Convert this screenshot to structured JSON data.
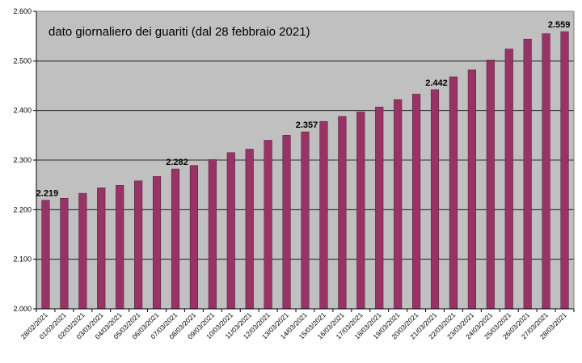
{
  "chart_data": {
    "type": "bar",
    "title": "dato giornaliero dei guariti (dal 28 febbraio 2021)",
    "xlabel": "",
    "ylabel": "",
    "ylim": [
      2000,
      2600
    ],
    "y_ticks": [
      2000,
      2100,
      2200,
      2300,
      2400,
      2500,
      2600
    ],
    "y_tick_labels": [
      "2.000",
      "2.100",
      "2.200",
      "2.300",
      "2.400",
      "2.500",
      "2.600"
    ],
    "grid": true,
    "bar_color": "#993366",
    "plot_background": "#c0c0c0",
    "categories": [
      "28/02/2021",
      "01/03/2021",
      "02/03/2021",
      "03/03/2021",
      "04/03/2021",
      "05/03/2021",
      "06/03/2021",
      "07/03/2021",
      "08/03/2021",
      "09/03/2021",
      "10/03/2021",
      "11/03/2021",
      "12/03/2021",
      "13/03/2021",
      "14/03/2021",
      "15/03/2021",
      "16/03/2021",
      "17/03/2021",
      "18/03/2021",
      "19/03/2021",
      "20/03/2021",
      "21/03/2021",
      "22/03/2021",
      "23/03/2021",
      "24/03/2021",
      "25/03/2021",
      "26/03/2021",
      "27/03/2021",
      "28/03/2021"
    ],
    "values": [
      2219,
      2223,
      2233,
      2244,
      2249,
      2258,
      2267,
      2282,
      2289,
      2301,
      2315,
      2322,
      2340,
      2350,
      2357,
      2378,
      2388,
      2397,
      2407,
      2422,
      2433,
      2442,
      2468,
      2482,
      2502,
      2524,
      2544,
      2555,
      2559
    ],
    "data_labels": [
      {
        "index": 0,
        "text": "2.219"
      },
      {
        "index": 7,
        "text": "2.282"
      },
      {
        "index": 14,
        "text": "2.357"
      },
      {
        "index": 21,
        "text": "2.442"
      },
      {
        "index": 28,
        "text": "2.559"
      }
    ]
  }
}
